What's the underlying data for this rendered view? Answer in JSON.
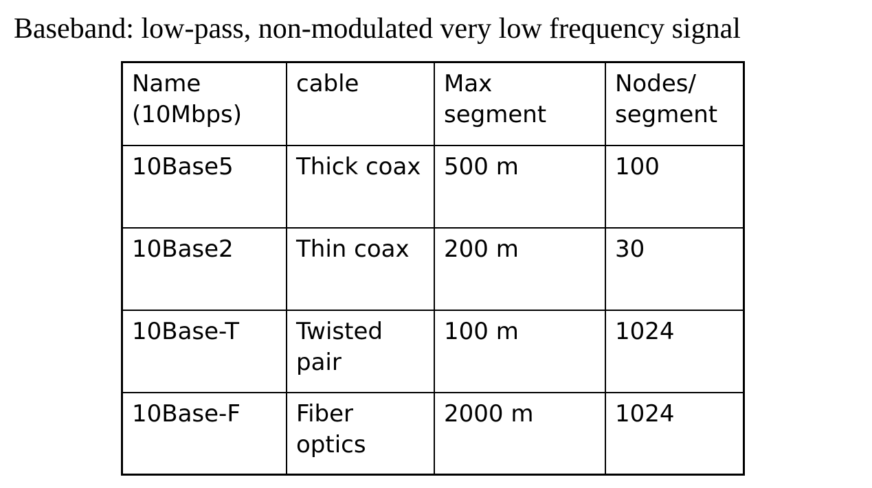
{
  "slide": {
    "title": "Baseband: low-pass, non-modulated very low frequency signal"
  },
  "table": {
    "headers": {
      "name": "Name\n(10Mbps)",
      "cable": "cable",
      "max_segment": "Max\nsegment",
      "nodes_per_segment": "Nodes/\nsegment"
    },
    "rows": [
      {
        "name": "10Base5",
        "cable": "Thick coax",
        "max_segment": "500 m",
        "nodes_per_segment": "100"
      },
      {
        "name": "10Base2",
        "cable": "Thin coax",
        "max_segment": "200 m",
        "nodes_per_segment": "30"
      },
      {
        "name": "10Base-T",
        "cable": "Twisted\npair",
        "max_segment": "100 m",
        "nodes_per_segment": "1024"
      },
      {
        "name": "10Base-F",
        "cable": "Fiber\noptics",
        "max_segment": "2000 m",
        "nodes_per_segment": "1024"
      }
    ]
  }
}
